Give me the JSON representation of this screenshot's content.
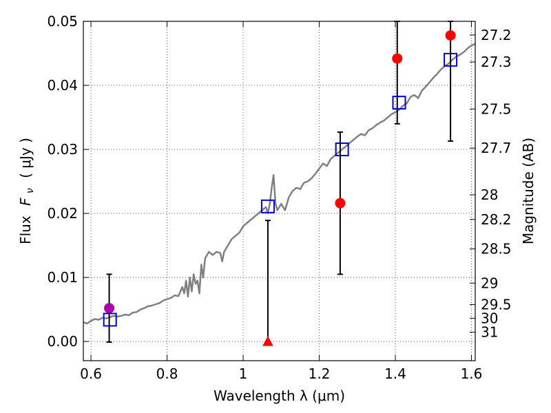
{
  "chart_data": {
    "type": "scatter",
    "xlabel": "Wavelength  λ (μm)",
    "ylabel_prefix": "Flux",
    "ylabel_symbol": "F",
    "ylabel_subscript": "ν",
    "ylabel_units": "( μJy )",
    "y2label": "Magnitude (AB)",
    "xlim": [
      0.58,
      1.61
    ],
    "ylim": [
      -0.003,
      0.05
    ],
    "grid": true,
    "x_ticks": [
      0.6,
      0.8,
      1.0,
      1.2,
      1.4,
      1.6
    ],
    "x_tick_labels": [
      "0.6",
      "0.8",
      "1",
      "1.2",
      "1.4",
      "1.6"
    ],
    "y_ticks": [
      0.0,
      0.01,
      0.02,
      0.03,
      0.04,
      0.05
    ],
    "y_tick_labels": [
      "0.00",
      "0.01",
      "0.02",
      "0.03",
      "0.04",
      "0.05"
    ],
    "y2_ticks": [
      {
        "label": "27.2",
        "mag": 27.2
      },
      {
        "label": "27.3",
        "mag": 27.3
      },
      {
        "label": "27.5",
        "mag": 27.5
      },
      {
        "label": "27.7",
        "mag": 27.7
      },
      {
        "label": "28",
        "mag": 28.0
      },
      {
        "label": "28.2",
        "mag": 28.2
      },
      {
        "label": "28.5",
        "mag": 28.5
      },
      {
        "label": "29",
        "mag": 29.0
      },
      {
        "label": "29.5",
        "mag": 29.5
      },
      {
        "label": "30",
        "mag": 30.0
      },
      {
        "label": "31",
        "mag": 31.0
      }
    ],
    "colors": {
      "spectrum": "#808080",
      "observed": "#ff0000",
      "optical": "#aa00aa",
      "model": "#0000cc",
      "errorbar": "#000000",
      "grid": "#555555"
    },
    "series": [
      {
        "kind": "spectrum",
        "points": [
          [
            0.58,
            0.003
          ],
          [
            0.59,
            0.0028
          ],
          [
            0.6,
            0.0032
          ],
          [
            0.61,
            0.0035
          ],
          [
            0.62,
            0.0034
          ],
          [
            0.63,
            0.0037
          ],
          [
            0.64,
            0.0036
          ],
          [
            0.65,
            0.0038
          ],
          [
            0.66,
            0.004
          ],
          [
            0.67,
            0.0039
          ],
          [
            0.68,
            0.004
          ],
          [
            0.69,
            0.0042
          ],
          [
            0.7,
            0.0041
          ],
          [
            0.71,
            0.0045
          ],
          [
            0.72,
            0.0046
          ],
          [
            0.73,
            0.005
          ],
          [
            0.74,
            0.0052
          ],
          [
            0.75,
            0.0055
          ],
          [
            0.76,
            0.0056
          ],
          [
            0.77,
            0.0058
          ],
          [
            0.78,
            0.006
          ],
          [
            0.79,
            0.0064
          ],
          [
            0.8,
            0.0066
          ],
          [
            0.81,
            0.0068
          ],
          [
            0.82,
            0.0072
          ],
          [
            0.83,
            0.0071
          ],
          [
            0.84,
            0.0085
          ],
          [
            0.845,
            0.0075
          ],
          [
            0.85,
            0.0095
          ],
          [
            0.855,
            0.007
          ],
          [
            0.86,
            0.01
          ],
          [
            0.865,
            0.0078
          ],
          [
            0.87,
            0.0105
          ],
          [
            0.875,
            0.009
          ],
          [
            0.88,
            0.0095
          ],
          [
            0.885,
            0.0075
          ],
          [
            0.89,
            0.012
          ],
          [
            0.895,
            0.01
          ],
          [
            0.9,
            0.013
          ],
          [
            0.91,
            0.014
          ],
          [
            0.92,
            0.0135
          ],
          [
            0.93,
            0.014
          ],
          [
            0.94,
            0.0138
          ],
          [
            0.945,
            0.0125
          ],
          [
            0.95,
            0.014
          ],
          [
            0.96,
            0.015
          ],
          [
            0.97,
            0.016
          ],
          [
            0.98,
            0.0165
          ],
          [
            0.99,
            0.017
          ],
          [
            1.0,
            0.018
          ],
          [
            1.01,
            0.0185
          ],
          [
            1.02,
            0.019
          ],
          [
            1.03,
            0.0195
          ],
          [
            1.04,
            0.02
          ],
          [
            1.05,
            0.0205
          ],
          [
            1.06,
            0.021
          ],
          [
            1.065,
            0.02
          ],
          [
            1.07,
            0.0215
          ],
          [
            1.075,
            0.024
          ],
          [
            1.08,
            0.026
          ],
          [
            1.085,
            0.0215
          ],
          [
            1.09,
            0.0205
          ],
          [
            1.1,
            0.0215
          ],
          [
            1.11,
            0.0205
          ],
          [
            1.12,
            0.0225
          ],
          [
            1.13,
            0.0235
          ],
          [
            1.14,
            0.024
          ],
          [
            1.15,
            0.0238
          ],
          [
            1.16,
            0.0248
          ],
          [
            1.17,
            0.025
          ],
          [
            1.18,
            0.0255
          ],
          [
            1.19,
            0.0262
          ],
          [
            1.2,
            0.027
          ],
          [
            1.21,
            0.0278
          ],
          [
            1.22,
            0.0274
          ],
          [
            1.23,
            0.0285
          ],
          [
            1.24,
            0.029
          ],
          [
            1.25,
            0.0295
          ],
          [
            1.26,
            0.03
          ],
          [
            1.27,
            0.0305
          ],
          [
            1.28,
            0.031
          ],
          [
            1.29,
            0.0315
          ],
          [
            1.3,
            0.032
          ],
          [
            1.31,
            0.0324
          ],
          [
            1.32,
            0.0322
          ],
          [
            1.33,
            0.033
          ],
          [
            1.34,
            0.0333
          ],
          [
            1.35,
            0.0338
          ],
          [
            1.36,
            0.0342
          ],
          [
            1.37,
            0.0345
          ],
          [
            1.38,
            0.035
          ],
          [
            1.39,
            0.0355
          ],
          [
            1.4,
            0.0358
          ],
          [
            1.41,
            0.0362
          ],
          [
            1.42,
            0.0368
          ],
          [
            1.43,
            0.0372
          ],
          [
            1.44,
            0.0382
          ],
          [
            1.45,
            0.0385
          ],
          [
            1.46,
            0.038
          ],
          [
            1.47,
            0.0392
          ],
          [
            1.48,
            0.0398
          ],
          [
            1.49,
            0.0405
          ],
          [
            1.5,
            0.0412
          ],
          [
            1.51,
            0.0418
          ],
          [
            1.52,
            0.0425
          ],
          [
            1.53,
            0.043
          ],
          [
            1.54,
            0.0434
          ],
          [
            1.55,
            0.044
          ],
          [
            1.56,
            0.0445
          ],
          [
            1.57,
            0.0448
          ],
          [
            1.58,
            0.0452
          ],
          [
            1.59,
            0.0458
          ],
          [
            1.6,
            0.0462
          ],
          [
            1.61,
            0.0465
          ]
        ]
      },
      {
        "kind": "observed",
        "points": [
          {
            "x": 1.255,
            "y": 0.0216,
            "err_low": 0.0105,
            "err_high": 0.0327
          },
          {
            "x": 1.405,
            "y": 0.0442,
            "err_low": 0.034,
            "err_high": 0.05
          },
          {
            "x": 1.545,
            "y": 0.0478,
            "err_low": 0.0313,
            "err_high": 0.05
          }
        ]
      },
      {
        "kind": "optical",
        "points": [
          {
            "x": 0.648,
            "y": 0.0052,
            "err_low": -0.0001,
            "err_high": 0.0105
          }
        ]
      },
      {
        "kind": "upper_limit",
        "points": [
          {
            "x": 1.065,
            "y": 0.0,
            "err_low": 0.0,
            "err_high": 0.0189
          }
        ]
      },
      {
        "kind": "model",
        "points": [
          {
            "x": 0.65,
            "y": 0.0034
          },
          {
            "x": 1.065,
            "y": 0.0211
          },
          {
            "x": 1.26,
            "y": 0.03
          },
          {
            "x": 1.41,
            "y": 0.0373
          },
          {
            "x": 1.545,
            "y": 0.044
          }
        ]
      }
    ]
  }
}
